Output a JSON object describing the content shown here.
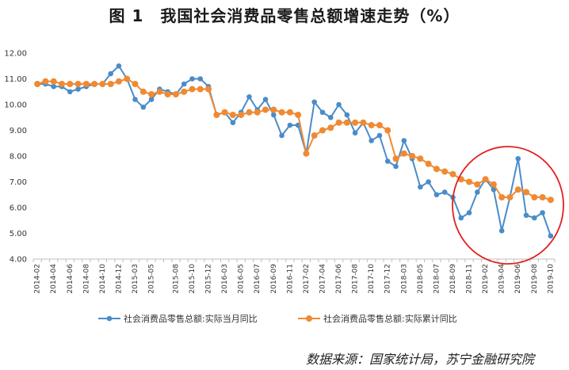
{
  "title": "图 1　我国社会消费品零售总额增速走势（%）",
  "source": "数据来源：国家统计局，苏宁金融研究院",
  "chart_data": {
    "type": "line",
    "title": "图 1　我国社会消费品零售总额增速走势（%）",
    "xlabel": "",
    "ylabel": "",
    "ylim": [
      4.0,
      12.0
    ],
    "yticks": [
      "12.00",
      "11.00",
      "10.00",
      "9.00",
      "8.00",
      "7.00",
      "6.00",
      "5.00",
      "4.00"
    ],
    "grid": false,
    "legend_position": "bottom",
    "x": [
      "2014-02",
      "2014-03",
      "2014-04",
      "2014-05",
      "2014-06",
      "2014-07",
      "2014-08",
      "2014-09",
      "2014-10",
      "2014-11",
      "2014-12",
      "2015-02",
      "2015-03",
      "2015-04",
      "2015-05",
      "2015-06",
      "2015-07",
      "2015-08",
      "2015-09",
      "2015-10",
      "2015-11",
      "2015-12",
      "2016-02",
      "2016-03",
      "2016-04",
      "2016-05",
      "2016-06",
      "2016-07",
      "2016-08",
      "2016-09",
      "2016-10",
      "2016-11",
      "2016-12",
      "2017-02",
      "2017-03",
      "2017-04",
      "2017-05",
      "2017-06",
      "2017-07",
      "2017-08",
      "2017-09",
      "2017-10",
      "2017-11",
      "2017-12",
      "2018-02",
      "2018-03",
      "2018-04",
      "2018-05",
      "2018-06",
      "2018-07",
      "2018-08",
      "2018-09",
      "2018-10",
      "2018-11",
      "2018-12",
      "2019-02",
      "2019-03",
      "2019-04",
      "2019-05",
      "2019-06",
      "2019-07",
      "2019-08",
      "2019-09",
      "2019-10"
    ],
    "x_tick_labels": [
      "2014-02",
      "2014-04",
      "2014-06",
      "2014-08",
      "2014-10",
      "2014-12",
      "2015-03",
      "2015-05",
      "2015-08",
      "2015-10",
      "2015-12",
      "2016-03",
      "2016-05",
      "2016-07",
      "2016-09",
      "2016-11",
      "2017-02",
      "2017-04",
      "2017-06",
      "2017-08",
      "2017-10",
      "2017-12",
      "2018-03",
      "2018-05",
      "2018-07",
      "2018-09",
      "2018-11",
      "2019-02",
      "2019-04",
      "2019-06",
      "2019-08",
      "2019-10"
    ],
    "series": [
      {
        "name": "社会消费品零售总额:实际当月同比",
        "color": "#4a8cc9",
        "marker": "circle",
        "values": [
          10.8,
          10.8,
          10.7,
          10.7,
          10.5,
          10.6,
          10.7,
          10.8,
          10.8,
          11.2,
          11.5,
          11.0,
          10.2,
          9.9,
          10.2,
          10.6,
          10.5,
          10.4,
          10.8,
          11.0,
          11.0,
          10.7,
          9.6,
          9.7,
          9.3,
          9.7,
          10.3,
          9.8,
          10.2,
          9.6,
          8.8,
          9.2,
          9.2,
          8.1,
          10.1,
          9.7,
          9.5,
          10.0,
          9.6,
          8.9,
          9.3,
          8.6,
          8.8,
          7.8,
          7.6,
          8.6,
          7.9,
          6.8,
          7.0,
          6.5,
          6.6,
          6.4,
          5.6,
          5.8,
          6.6,
          7.1,
          6.7,
          5.1,
          6.4,
          7.9,
          5.7,
          5.6,
          5.8,
          4.9
        ]
      },
      {
        "name": "社会消费品零售总额:实际累计同比",
        "color": "#ef8a33",
        "marker": "circle",
        "values": [
          10.8,
          10.9,
          10.9,
          10.8,
          10.8,
          10.8,
          10.8,
          10.8,
          10.8,
          10.8,
          10.9,
          11.0,
          10.8,
          10.5,
          10.4,
          10.5,
          10.4,
          10.4,
          10.5,
          10.6,
          10.6,
          10.6,
          9.6,
          9.7,
          9.6,
          9.6,
          9.7,
          9.7,
          9.8,
          9.8,
          9.7,
          9.7,
          9.6,
          8.1,
          8.8,
          9.0,
          9.1,
          9.3,
          9.3,
          9.3,
          9.3,
          9.2,
          9.2,
          9.0,
          7.9,
          8.1,
          8.0,
          7.9,
          7.7,
          7.5,
          7.4,
          7.3,
          7.1,
          7.0,
          6.9,
          7.1,
          6.9,
          6.4,
          6.4,
          6.7,
          6.6,
          6.4,
          6.4,
          6.3
        ]
      }
    ],
    "annotations": [
      {
        "type": "ellipse-highlight",
        "color": "#e02020",
        "range": [
          "2018-09",
          "2019-10"
        ]
      }
    ]
  }
}
